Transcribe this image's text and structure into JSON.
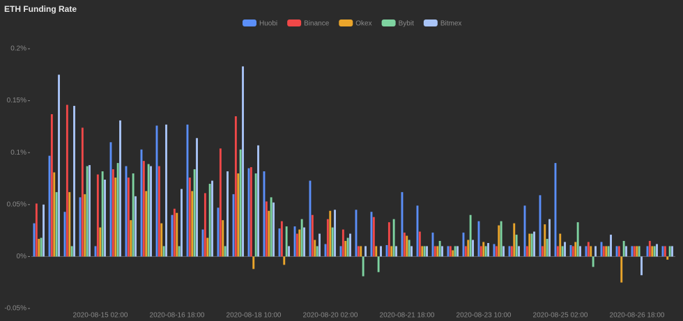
{
  "chart_data": {
    "type": "bar",
    "title": "ETH Funding Rate",
    "categories": [
      null,
      null,
      null,
      null,
      "2020-08-15 02:00",
      null,
      null,
      null,
      null,
      "2020-08-16 18:00",
      null,
      null,
      null,
      null,
      "2020-08-18 10:00",
      null,
      null,
      null,
      null,
      "2020-08-20 02:00",
      null,
      null,
      null,
      null,
      "2020-08-21 18:00",
      null,
      null,
      null,
      null,
      "2020-08-23 10:00",
      null,
      null,
      null,
      null,
      "2020-08-25 02:00",
      null,
      null,
      null,
      null,
      "2020-08-26 18:00",
      null,
      null
    ],
    "series": [
      {
        "name": "Huobi",
        "color": "#5b8ff9",
        "values": [
          0.032,
          0.097,
          0.043,
          0.057,
          0.01,
          0.11,
          0.087,
          0.103,
          0.126,
          0.04,
          0.127,
          0.026,
          0.047,
          0.06,
          0.085,
          0.082,
          0.027,
          0.029,
          0.073,
          0.012,
          0.01,
          0.045,
          0.043,
          0.011,
          0.062,
          0.049,
          0.023,
          0.01,
          0.023,
          0.034,
          0.012,
          0.01,
          0.049,
          0.059,
          0.09,
          0.011,
          0.01,
          0.014,
          0.01,
          0.01,
          0.01,
          0.01
        ]
      },
      {
        "name": "Binance",
        "color": "#f04848",
        "values": [
          0.051,
          0.137,
          0.146,
          0.124,
          0.079,
          0.084,
          0.076,
          0.092,
          0.087,
          0.046,
          0.076,
          0.061,
          0.104,
          0.135,
          0.086,
          0.053,
          0.034,
          0.022,
          0.04,
          0.036,
          0.026,
          0.01,
          0.038,
          0.033,
          0.023,
          0.024,
          0.01,
          0.01,
          0.01,
          0.01,
          0.01,
          0.01,
          0.01,
          0.01,
          0.01,
          0.01,
          0.014,
          0.01,
          0.01,
          0.01,
          0.015,
          0.01
        ]
      },
      {
        "name": "Okex",
        "color": "#eaa52b",
        "values": [
          0.017,
          0.081,
          0.062,
          0.06,
          0.028,
          0.076,
          0.035,
          0.063,
          0.032,
          0.042,
          0.063,
          0.018,
          0.035,
          0.08,
          -0.012,
          0.044,
          -0.008,
          0.026,
          0.016,
          0.044,
          0.015,
          0.01,
          0.01,
          0.01,
          0.02,
          0.01,
          0.01,
          0.006,
          0.016,
          0.014,
          0.03,
          0.032,
          0.022,
          0.031,
          0.022,
          0.014,
          0.01,
          0.01,
          -0.025,
          0.01,
          0.01,
          -0.003
        ]
      },
      {
        "name": "Bybit",
        "color": "#7ed3a0",
        "values": [
          0.018,
          0.062,
          0.01,
          0.087,
          0.082,
          0.09,
          0.08,
          0.089,
          0.01,
          0.01,
          0.084,
          0.07,
          0.01,
          0.103,
          0.08,
          0.057,
          0.029,
          0.036,
          0.01,
          0.028,
          0.018,
          -0.019,
          -0.015,
          0.036,
          0.016,
          0.01,
          0.015,
          0.01,
          0.04,
          0.01,
          0.034,
          0.021,
          0.022,
          0.017,
          0.01,
          0.033,
          -0.01,
          0.01,
          0.015,
          0.01,
          0.01,
          0.01
        ]
      },
      {
        "name": "Bitmex",
        "color": "#a9c4f7",
        "values": [
          0.05,
          0.175,
          0.145,
          0.088,
          0.074,
          0.131,
          0.058,
          0.087,
          0.127,
          0.065,
          0.114,
          0.073,
          0.082,
          0.183,
          0.107,
          0.052,
          0.01,
          0.028,
          0.022,
          0.045,
          0.022,
          0.01,
          0.01,
          0.01,
          0.01,
          0.01,
          0.01,
          0.01,
          0.016,
          0.013,
          0.01,
          0.01,
          0.024,
          0.036,
          0.014,
          0.01,
          0.01,
          0.021,
          0.01,
          -0.018,
          0.012,
          0.01
        ]
      }
    ],
    "ylim": [
      -0.05,
      0.2
    ],
    "yticks": [
      {
        "value": -0.05,
        "label": "-0.05%"
      },
      {
        "value": 0,
        "label": "0%"
      },
      {
        "value": 0.05,
        "label": "0.05%"
      },
      {
        "value": 0.1,
        "label": "0.1%"
      },
      {
        "value": 0.15,
        "label": "0.15%"
      },
      {
        "value": 0.2,
        "label": "0.2%"
      }
    ],
    "grid": false
  }
}
